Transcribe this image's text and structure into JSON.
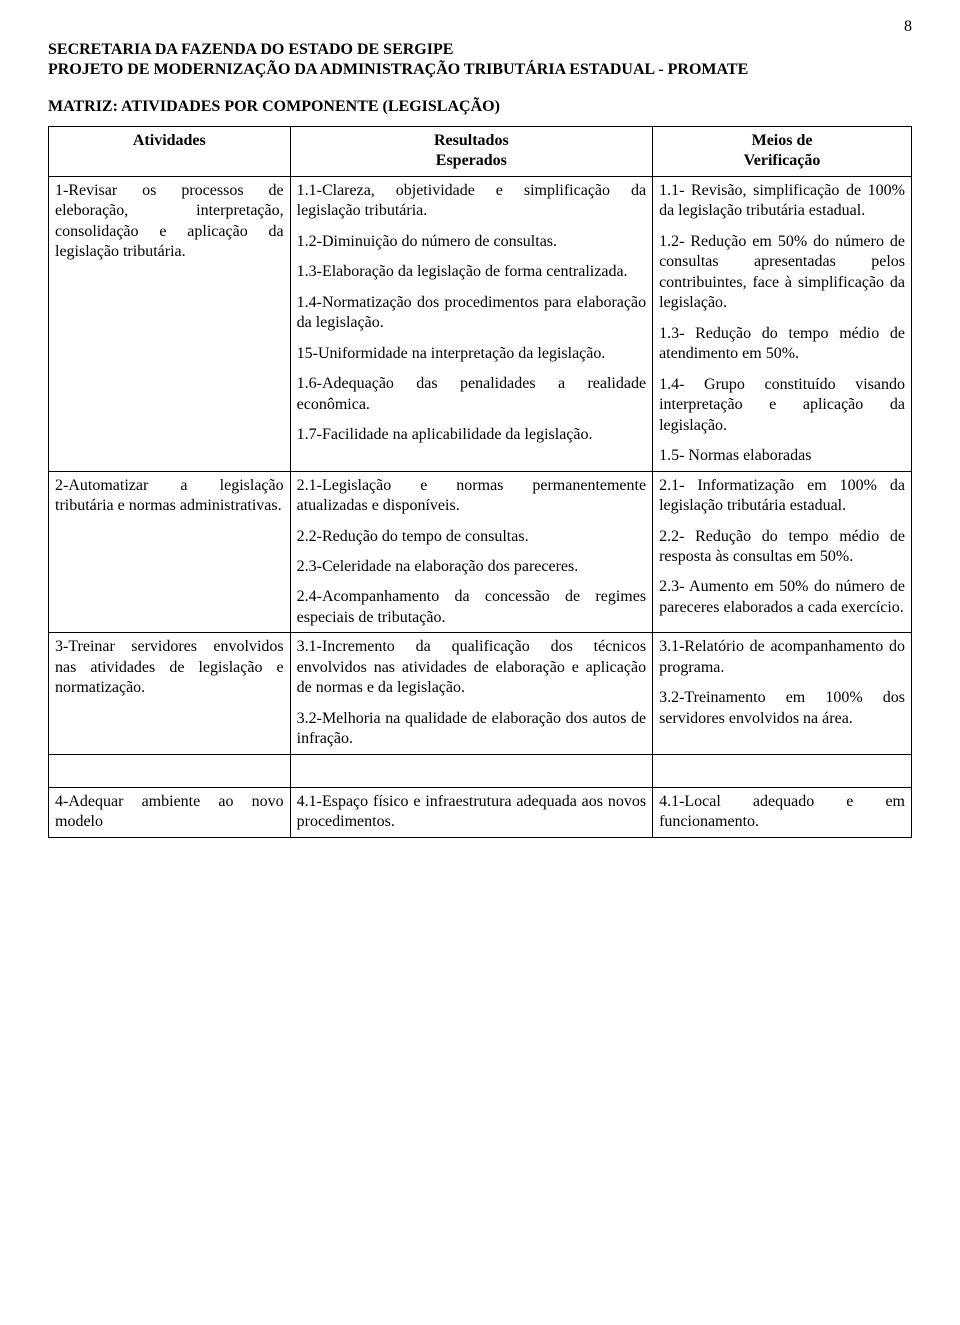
{
  "page_number": "8",
  "header": {
    "line1": "SECRETARIA DA FAZENDA DO ESTADO DE SERGIPE",
    "line2": "PROJETO DE MODERNIZAÇÃO DA ADMINISTRAÇÃO TRIBUTÁRIA ESTADUAL - PROMATE"
  },
  "matrix_title": "MATRIZ:  ATIVIDADES POR COMPONENTE (LEGISLAÇÃO)",
  "columns": {
    "activities": "Atividades",
    "results_l1": "Resultados",
    "results_l2": "Esperados",
    "means_l1": "Meios de",
    "means_l2": "Verificação"
  },
  "row1": {
    "activity": "1-Revisar os processos de eleboração, interpretação, consolidação e aplicação da legislação tributária.",
    "results": {
      "p1": "1.1-Clareza, objetividade e simplificação da legislação tributária.",
      "p2": "1.2-Diminuição do número de consultas.",
      "p3": "1.3-Elaboração da legislação de forma centralizada.",
      "p4": "1.4-Normatização dos procedimentos para elaboração da legislação.",
      "p5": "15-Uniformidade na interpretação da legislação.",
      "p6": "1.6-Adequação das penalidades a realidade econômica.",
      "p7": "1.7-Facilidade na aplicabilidade da legislação."
    },
    "means": {
      "p1": "1.1- Revisão, simplificação de 100% da legislação tributária estadual.",
      "p2": "1.2- Redução em 50% do número de consultas apresentadas pelos contribuintes, face à simplificação da legislação.",
      "p3": "1.3- Redução do tempo médio de atendimento em 50%.",
      "p4": "1.4- Grupo constituído visando interpretação e aplicação da legislação.",
      "p5": "1.5- Normas elaboradas"
    }
  },
  "row2": {
    "activity": "2-Automatizar a legislação tributária e normas administrativas.",
    "results": {
      "p1": "2.1-Legislação e normas permanentemente atualizadas e disponíveis.",
      "p2": "2.2-Redução do tempo de consultas.",
      "p3": "2.3-Celeridade na elaboração dos pareceres.",
      "p4": "2.4-Acompanhamento da concessão de regimes especiais de tributação."
    },
    "means": {
      "p1": "2.1- Informatização em 100% da legislação tributária estadual.",
      "p2": "2.2- Redução do tempo médio de resposta às consultas em 50%.",
      "p3": "2.3- Aumento em 50% do número de pareceres elaborados a cada exercício."
    }
  },
  "row3": {
    "activity": "3-Treinar servidores envolvidos nas atividades de legislação e normatização.",
    "results": {
      "p1": "3.1-Incremento da qualificação dos técnicos envolvidos nas atividades de elaboração e aplicação de normas e da legislação.",
      "p2": "3.2-Melhoria na qualidade de elaboração dos autos de infração."
    },
    "means": {
      "p1": "3.1-Relatório de acompanhamento do programa.",
      "p2": "3.2-Treinamento em 100% dos servidores envolvidos na área."
    }
  },
  "row4": {
    "activity": "4-Adequar ambiente ao novo modelo",
    "results": {
      "p1": "4.1-Espaço físico e infraestrutura adequada aos novos procedimentos."
    },
    "means": {
      "p1": "4.1-Local adequado e em funcionamento."
    }
  }
}
